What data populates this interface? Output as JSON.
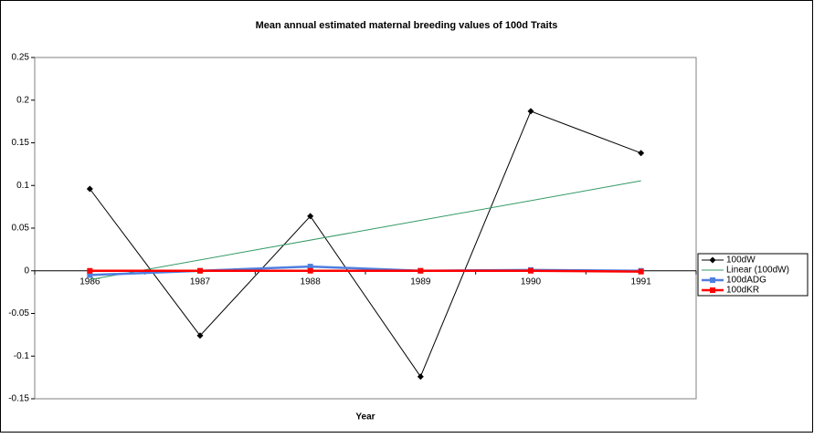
{
  "chart_data": {
    "type": "line",
    "title": "Mean annual estimated maternal breeding values of 100d Traits",
    "x_label": "Year",
    "categories": [
      "1986",
      "1987",
      "1988",
      "1989",
      "1990",
      "1991"
    ],
    "series": [
      {
        "name": "100dW",
        "color": "#000000",
        "marker": "diamond",
        "values": [
          0.096,
          -0.076,
          0.064,
          -0.124,
          0.187,
          0.138
        ],
        "trendline": {
          "type": "linear",
          "name": "Linear (100dW)",
          "color": "#339966"
        }
      },
      {
        "name": "100dADG",
        "color": "#4f7fdf",
        "marker": "square",
        "values": [
          -0.005,
          0.0,
          0.005,
          0.0,
          0.001,
          0.0
        ]
      },
      {
        "name": "100dKR",
        "color": "#ff0000",
        "marker": "square",
        "values": [
          0.0,
          0.0,
          0.0,
          0.0,
          0.0,
          -0.001
        ]
      }
    ],
    "ylim": [
      -0.15,
      0.25
    ],
    "yticks": [
      -0.15,
      -0.1,
      -0.05,
      0,
      0.05,
      0.1,
      0.15,
      0.2,
      0.25
    ],
    "legend": "right"
  }
}
